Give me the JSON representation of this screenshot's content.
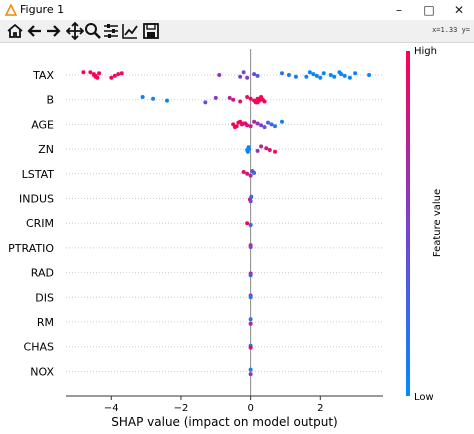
{
  "window": {
    "title": "Figure 1",
    "minimize": "–",
    "maximize": "□",
    "close": "✕"
  },
  "toolbar": {
    "buttons": [
      "home-icon",
      "back-arrow-icon",
      "forward-arrow-icon",
      "pan-icon",
      "zoom-icon",
      "subplots-icon",
      "edit-axis-icon",
      "save-icon"
    ],
    "coords": "x=1.33 y="
  },
  "colors": {
    "high": "#ff0052",
    "low": "#008bfb",
    "mid": "#7b3fd0"
  },
  "chart_data": {
    "type": "scatter",
    "xlabel": "SHAP value (impact on model output)",
    "colorbar_label": "Feature value",
    "colorbar_high": "High",
    "colorbar_low": "Low",
    "xticks": [
      "−4",
      "−2",
      "0",
      "2"
    ],
    "xtick_values": [
      -4,
      -2,
      0,
      2
    ],
    "xlim": [
      -5.3,
      3.8
    ],
    "features": [
      "TAX",
      "B",
      "AGE",
      "ZN",
      "LSTAT",
      "INDUS",
      "CRIM",
      "PTRATIO",
      "RAD",
      "DIS",
      "RM",
      "CHAS",
      "NOX"
    ],
    "points": [
      {
        "f": 0,
        "x": -4.6,
        "v": 0.95
      },
      {
        "f": 0,
        "x": -4.5,
        "v": 0.97
      },
      {
        "f": 0,
        "x": -4.45,
        "v": 0.98
      },
      {
        "f": 0,
        "x": -4.4,
        "v": 0.96
      },
      {
        "f": 0,
        "x": -4.35,
        "v": 0.98
      },
      {
        "f": 0,
        "x": -4.5,
        "v": 0.97
      },
      {
        "f": 0,
        "x": -4.45,
        "v": 0.99
      },
      {
        "f": 0,
        "x": -4.8,
        "v": 0.95
      },
      {
        "f": 0,
        "x": -3.8,
        "v": 0.93
      },
      {
        "f": 0,
        "x": -3.9,
        "v": 0.94
      },
      {
        "f": 0,
        "x": -4.0,
        "v": 0.94
      },
      {
        "f": 0,
        "x": -3.7,
        "v": 0.92
      },
      {
        "f": 0,
        "x": -0.9,
        "v": 0.6
      },
      {
        "f": 0,
        "x": -0.3,
        "v": 0.5
      },
      {
        "f": 0,
        "x": -0.2,
        "v": 0.45
      },
      {
        "f": 0,
        "x": 0.1,
        "v": 0.4
      },
      {
        "f": 0,
        "x": 0.2,
        "v": 0.35
      },
      {
        "f": 0,
        "x": -0.1,
        "v": 0.55
      },
      {
        "f": 0,
        "x": 0.9,
        "v": 0.15
      },
      {
        "f": 0,
        "x": 1.1,
        "v": 0.12
      },
      {
        "f": 0,
        "x": 1.6,
        "v": 0.05
      },
      {
        "f": 0,
        "x": 1.7,
        "v": 0.05
      },
      {
        "f": 0,
        "x": 1.8,
        "v": 0.04
      },
      {
        "f": 0,
        "x": 1.9,
        "v": 0.05
      },
      {
        "f": 0,
        "x": 2.0,
        "v": 0.04
      },
      {
        "f": 0,
        "x": 2.1,
        "v": 0.05
      },
      {
        "f": 0,
        "x": 2.3,
        "v": 0.03
      },
      {
        "f": 0,
        "x": 2.4,
        "v": 0.04
      },
      {
        "f": 0,
        "x": 2.55,
        "v": 0.03
      },
      {
        "f": 0,
        "x": 2.6,
        "v": 0.04
      },
      {
        "f": 0,
        "x": 2.7,
        "v": 0.03
      },
      {
        "f": 0,
        "x": 2.85,
        "v": 0.03
      },
      {
        "f": 0,
        "x": 3.0,
        "v": 0.04
      },
      {
        "f": 0,
        "x": 3.4,
        "v": 0.03
      },
      {
        "f": 0,
        "x": 1.3,
        "v": 0.1
      },
      {
        "f": 1,
        "x": -3.1,
        "v": 0.05
      },
      {
        "f": 1,
        "x": -2.8,
        "v": 0.05
      },
      {
        "f": 1,
        "x": -2.4,
        "v": 0.06
      },
      {
        "f": 1,
        "x": -1.3,
        "v": 0.4
      },
      {
        "f": 1,
        "x": -1.0,
        "v": 0.55
      },
      {
        "f": 1,
        "x": -0.5,
        "v": 0.8
      },
      {
        "f": 1,
        "x": -0.3,
        "v": 0.85
      },
      {
        "f": 1,
        "x": -0.1,
        "v": 0.9
      },
      {
        "f": 1,
        "x": 0.0,
        "v": 0.92
      },
      {
        "f": 1,
        "x": 0.1,
        "v": 0.95
      },
      {
        "f": 1,
        "x": 0.2,
        "v": 0.96
      },
      {
        "f": 1,
        "x": 0.3,
        "v": 0.97
      },
      {
        "f": 1,
        "x": 0.35,
        "v": 0.98
      },
      {
        "f": 1,
        "x": 0.4,
        "v": 0.97
      },
      {
        "f": 1,
        "x": 0.3,
        "v": 0.96
      },
      {
        "f": 1,
        "x": 0.2,
        "v": 0.97
      },
      {
        "f": 1,
        "x": 0.25,
        "v": 0.98
      },
      {
        "f": 1,
        "x": 0.15,
        "v": 0.96
      },
      {
        "f": 1,
        "x": -0.6,
        "v": 0.7
      },
      {
        "f": 2,
        "x": -0.5,
        "v": 0.95
      },
      {
        "f": 2,
        "x": -0.4,
        "v": 0.97
      },
      {
        "f": 2,
        "x": -0.3,
        "v": 0.96
      },
      {
        "f": 2,
        "x": -0.2,
        "v": 0.92
      },
      {
        "f": 2,
        "x": -0.1,
        "v": 0.9
      },
      {
        "f": 2,
        "x": -0.45,
        "v": 0.98
      },
      {
        "f": 2,
        "x": -0.35,
        "v": 0.97
      },
      {
        "f": 2,
        "x": -0.25,
        "v": 0.93
      },
      {
        "f": 2,
        "x": 0.0,
        "v": 0.75
      },
      {
        "f": 2,
        "x": 0.1,
        "v": 0.7
      },
      {
        "f": 2,
        "x": 0.2,
        "v": 0.6
      },
      {
        "f": 2,
        "x": 0.3,
        "v": 0.5
      },
      {
        "f": 2,
        "x": 0.4,
        "v": 0.4
      },
      {
        "f": 2,
        "x": 0.5,
        "v": 0.3
      },
      {
        "f": 2,
        "x": 0.6,
        "v": 0.25
      },
      {
        "f": 2,
        "x": 0.7,
        "v": 0.15
      },
      {
        "f": 2,
        "x": 0.9,
        "v": 0.1
      },
      {
        "f": 2,
        "x": -0.15,
        "v": 0.85
      },
      {
        "f": 3,
        "x": -0.1,
        "v": 0.05
      },
      {
        "f": 3,
        "x": -0.08,
        "v": 0.04
      },
      {
        "f": 3,
        "x": -0.06,
        "v": 0.05
      },
      {
        "f": 3,
        "x": -0.05,
        "v": 0.03
      },
      {
        "f": 3,
        "x": 0.2,
        "v": 0.6
      },
      {
        "f": 3,
        "x": 0.3,
        "v": 0.7
      },
      {
        "f": 3,
        "x": 0.45,
        "v": 0.85
      },
      {
        "f": 3,
        "x": 0.55,
        "v": 0.9
      },
      {
        "f": 3,
        "x": 0.7,
        "v": 0.95
      },
      {
        "f": 4,
        "x": -0.2,
        "v": 0.9
      },
      {
        "f": 4,
        "x": -0.1,
        "v": 0.85
      },
      {
        "f": 4,
        "x": 0.0,
        "v": 0.7
      },
      {
        "f": 4,
        "x": 0.05,
        "v": 0.5
      },
      {
        "f": 4,
        "x": 0.1,
        "v": 0.2
      },
      {
        "f": 5,
        "x": -0.02,
        "v": 0.9
      },
      {
        "f": 5,
        "x": 0.0,
        "v": 0.5
      },
      {
        "f": 5,
        "x": 0.02,
        "v": 0.2
      },
      {
        "f": 6,
        "x": -0.1,
        "v": 0.9
      },
      {
        "f": 6,
        "x": 0.0,
        "v": 0.3
      },
      {
        "f": 7,
        "x": 0.0,
        "v": 0.8
      },
      {
        "f": 7,
        "x": 0.0,
        "v": 0.4
      },
      {
        "f": 8,
        "x": 0.0,
        "v": 0.8
      },
      {
        "f": 8,
        "x": 0.0,
        "v": 0.3
      },
      {
        "f": 9,
        "x": 0.0,
        "v": 0.6
      },
      {
        "f": 9,
        "x": 0.0,
        "v": 0.1
      },
      {
        "f": 10,
        "x": 0.0,
        "v": 0.7
      },
      {
        "f": 10,
        "x": 0.0,
        "v": 0.2
      },
      {
        "f": 11,
        "x": 0.0,
        "v": 0.05
      },
      {
        "f": 11,
        "x": 0.0,
        "v": 0.95
      },
      {
        "f": 12,
        "x": 0.0,
        "v": 0.6
      },
      {
        "f": 12,
        "x": 0.0,
        "v": 0.1
      }
    ]
  }
}
